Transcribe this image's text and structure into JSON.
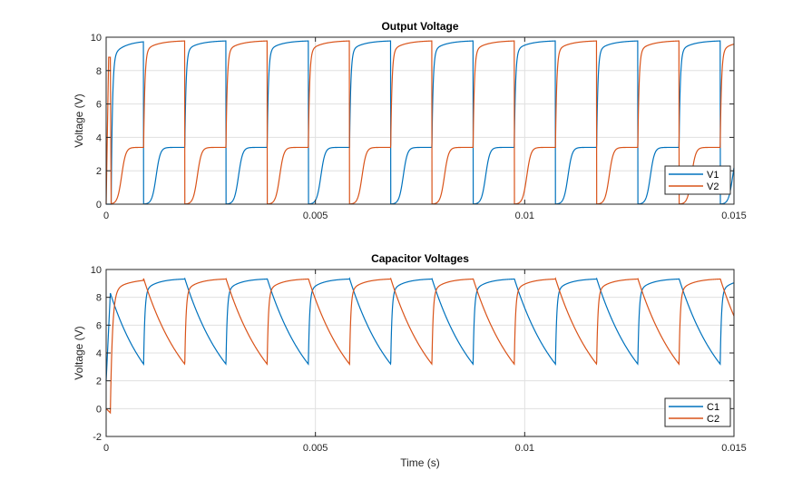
{
  "chart_data": [
    {
      "type": "line",
      "title": "Output Voltage",
      "xlabel": "",
      "ylabel": "Voltage (V)",
      "xlim": [
        0,
        0.015
      ],
      "ylim": [
        0,
        10
      ],
      "xticks": [
        0,
        0.005,
        0.01,
        0.015
      ],
      "xtick_labels": [
        "0",
        "0.005",
        "0.01",
        "0.015"
      ],
      "yticks": [
        0,
        2,
        4,
        6,
        8,
        10
      ],
      "ytick_labels": [
        "0",
        "2",
        "4",
        "6",
        "8",
        "10"
      ],
      "grid": true,
      "legend": {
        "placement": "bottom-right",
        "entries": [
          "V1",
          "V2"
        ]
      },
      "series": [
        {
          "name": "V1",
          "color": "#0072BD",
          "high_level": 9.8,
          "low_plateau": 3.4
        },
        {
          "name": "V2",
          "color": "#D95319",
          "high_level": 9.8,
          "low_plateau": 3.4,
          "initial_spike": 8.8
        }
      ]
    },
    {
      "type": "line",
      "title": "Capacitor Voltages",
      "xlabel": "Time (s)",
      "ylabel": "Voltage (V)",
      "xlim": [
        0,
        0.015
      ],
      "ylim": [
        -2,
        10
      ],
      "xticks": [
        0,
        0.005,
        0.01,
        0.015
      ],
      "xtick_labels": [
        "0",
        "0.005",
        "0.01",
        "0.015"
      ],
      "yticks": [
        -2,
        0,
        2,
        4,
        6,
        8,
        10
      ],
      "ytick_labels": [
        "-2",
        "0",
        "2",
        "4",
        "6",
        "8",
        "10"
      ],
      "grid": true,
      "legend": {
        "placement": "bottom-right",
        "entries": [
          "C1",
          "C2"
        ]
      },
      "series": [
        {
          "name": "C1",
          "color": "#0072BD",
          "max": 9.35,
          "min": 3.2,
          "initial": 2.0,
          "initial_peak": 8.3
        },
        {
          "name": "C2",
          "color": "#D95319",
          "max": 9.35,
          "min": 3.2,
          "initial": 0.0,
          "initial_dip": -0.3
        }
      ]
    }
  ],
  "oscillation": {
    "first_transition_s": 0.000895,
    "half_period_s": 0.000984
  }
}
